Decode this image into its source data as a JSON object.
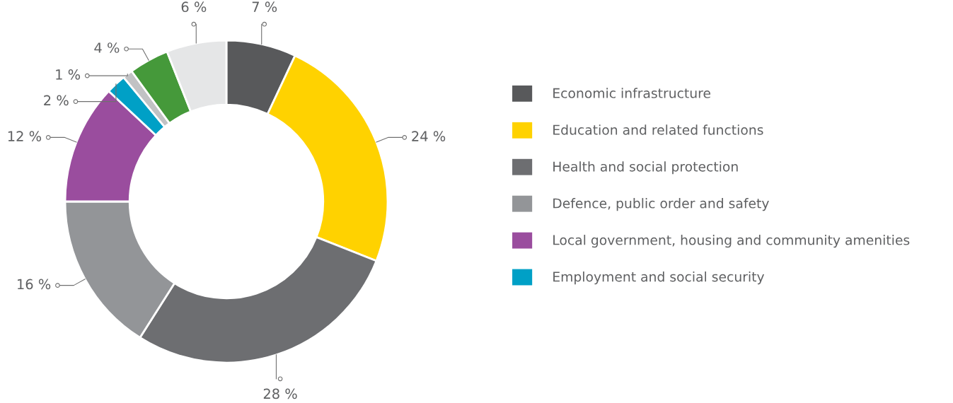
{
  "chart_data": {
    "type": "donut",
    "categories": [
      "Economic infrastructure",
      "Education and related functions",
      "Health and social protection",
      "Defence, public order and safety",
      "Local government, housing and community amenities",
      "Employment and social security",
      null,
      null,
      null
    ],
    "values": [
      7,
      24,
      28,
      16,
      12,
      2,
      1,
      4,
      6
    ],
    "value_labels": [
      "7 %",
      "24 %",
      "28 %",
      "16 %",
      "12 %",
      "2 %",
      "1 %",
      "4 %",
      "6 %"
    ],
    "colors": [
      "#58595b",
      "#ffd200",
      "#6d6e71",
      "#939598",
      "#9a4d9e",
      "#00a0c6",
      "#c1c2c4",
      "#45993a",
      "#e5e6e7"
    ],
    "legend": "right"
  }
}
